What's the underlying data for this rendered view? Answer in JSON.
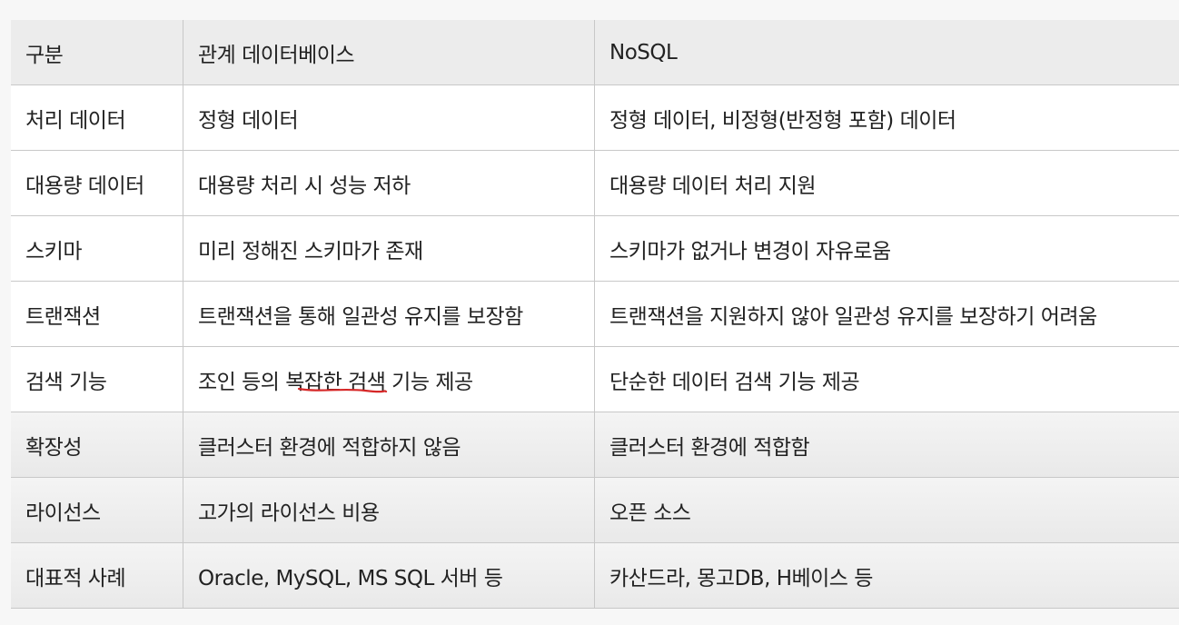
{
  "table": {
    "headers": [
      "구분",
      "관계 데이터베이스",
      "NoSQL"
    ],
    "rows": [
      [
        "처리 데이터",
        "정형 데이터",
        "정형 데이터, 비정형(반정형 포함) 데이터"
      ],
      [
        "대용량 데이터",
        "대용량 처리 시 성능 저하",
        "대용량 데이터 처리 지원"
      ],
      [
        "스키마",
        "미리 정해진 스키마가 존재",
        "스키마가 없거나 변경이 자유로움"
      ],
      [
        "트랜잭션",
        "트랜잭션을 통해 일관성 유지를 보장함",
        "트랜잭션을 지원하지 않아 일관성 유지를 보장하기 어려움"
      ],
      [
        "검색 기능",
        "조인 등의 복잡한 검색 기능 제공",
        "단순한 데이터 검색 기능 제공"
      ],
      [
        "확장성",
        "클러스터 환경에 적합하지 않음",
        "클러스터 환경에 적합함"
      ],
      [
        "라이선스",
        "고가의 라이선스 비용",
        "오픈 소스"
      ],
      [
        "대표적 사례",
        "Oracle, MySQL, MS SQL 서버 등",
        "카산드라, 몽고DB, H베이스 등"
      ]
    ]
  },
  "colors": {
    "header_bg": "#ececec",
    "grid_line": "#c8c8c8",
    "annotation": "#d62828"
  }
}
